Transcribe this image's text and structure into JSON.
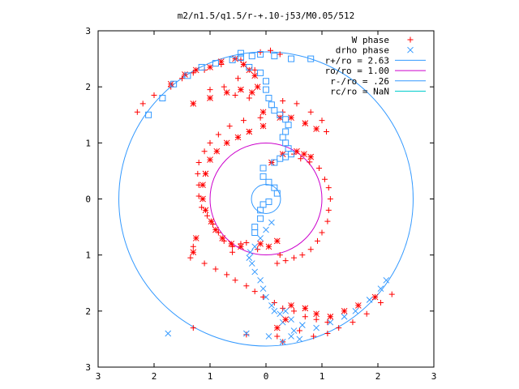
{
  "chart_data": {
    "type": "scatter",
    "title": "m2/n1.5/q1.5/r-+.10-j53/M0.05/512",
    "xlabel": "",
    "ylabel": "",
    "xlim": [
      -3,
      3
    ],
    "ylim": [
      -3,
      3
    ],
    "x_tick_values": [
      -3,
      -2,
      -1,
      0,
      1,
      2,
      3
    ],
    "x_tick_labels": [
      "3",
      "2",
      "1",
      "0",
      "1",
      "2",
      "3"
    ],
    "y_tick_values": [
      3,
      2,
      1,
      0,
      -1,
      -2,
      -3
    ],
    "y_tick_labels": [
      "3",
      "2",
      "1",
      "0",
      "1",
      "2",
      "3"
    ],
    "grid": false,
    "legend_position": "top-right",
    "colors": {
      "red": "#ff0000",
      "blue": "#3399ff",
      "magenta": "#cc00cc",
      "frame": "#000000"
    },
    "series": [
      {
        "name": "W phase",
        "marker": "plus",
        "color": "#ff0000",
        "points": [
          [
            -0.1,
            2.62
          ],
          [
            0.08,
            2.65
          ],
          [
            0.25,
            2.58
          ],
          [
            -0.45,
            2.48
          ],
          [
            -0.8,
            2.4
          ],
          [
            -1.1,
            2.3
          ],
          [
            -1.3,
            2.25
          ],
          [
            -1.5,
            2.15
          ],
          [
            -1.7,
            2.0
          ],
          [
            -2.0,
            1.85
          ],
          [
            -2.2,
            1.7
          ],
          [
            -2.3,
            1.55
          ],
          [
            -0.2,
            2.3
          ],
          [
            -0.5,
            2.15
          ],
          [
            -0.75,
            2.0
          ],
          [
            -1.0,
            1.95
          ],
          [
            -0.55,
            1.85
          ],
          [
            -0.3,
            1.8
          ],
          [
            0.3,
            1.75
          ],
          [
            0.55,
            1.7
          ],
          [
            0.8,
            1.55
          ],
          [
            1.0,
            1.4
          ],
          [
            1.08,
            1.2
          ],
          [
            0.3,
            1.55
          ],
          [
            -0.1,
            1.45
          ],
          [
            -0.4,
            1.4
          ],
          [
            -0.65,
            1.3
          ],
          [
            -0.85,
            1.15
          ],
          [
            -1.0,
            1.0
          ],
          [
            -1.1,
            0.85
          ],
          [
            -1.2,
            0.65
          ],
          [
            -1.22,
            0.45
          ],
          [
            -1.2,
            0.25
          ],
          [
            -1.2,
            0.05
          ],
          [
            -1.15,
            -0.15
          ],
          [
            -1.05,
            -0.3
          ],
          [
            -0.95,
            -0.45
          ],
          [
            -0.85,
            -0.6
          ],
          [
            -0.75,
            -0.75
          ],
          [
            -0.6,
            -0.85
          ],
          [
            -0.45,
            -0.8
          ],
          [
            -0.35,
            -0.78
          ],
          [
            0.5,
            0.8
          ],
          [
            0.62,
            0.72
          ],
          [
            0.78,
            0.66
          ],
          [
            0.95,
            0.55
          ],
          [
            1.05,
            0.35
          ],
          [
            1.12,
            0.2
          ],
          [
            1.15,
            0.0
          ],
          [
            1.12,
            -0.2
          ],
          [
            1.1,
            -0.4
          ],
          [
            1.0,
            -0.6
          ],
          [
            0.92,
            -0.75
          ],
          [
            0.8,
            -0.9
          ],
          [
            0.65,
            -1.0
          ],
          [
            0.5,
            -1.05
          ],
          [
            0.35,
            -1.1
          ],
          [
            0.2,
            -1.15
          ],
          [
            -1.3,
            -0.85
          ],
          [
            -1.35,
            -1.05
          ],
          [
            -1.1,
            -1.15
          ],
          [
            -0.9,
            -1.25
          ],
          [
            -0.7,
            -1.35
          ],
          [
            -0.55,
            -1.45
          ],
          [
            -0.35,
            -1.55
          ],
          [
            -0.2,
            -1.65
          ],
          [
            -0.05,
            -1.75
          ],
          [
            0.15,
            -1.85
          ],
          [
            0.3,
            -1.95
          ],
          [
            0.5,
            -2.0
          ],
          [
            0.7,
            -2.1
          ],
          [
            0.9,
            -2.15
          ],
          [
            1.1,
            -2.2
          ],
          [
            1.3,
            -2.3
          ],
          [
            1.55,
            -2.2
          ],
          [
            1.8,
            -2.05
          ],
          [
            2.05,
            -1.85
          ],
          [
            2.25,
            -1.7
          ],
          [
            -1.3,
            -2.3
          ],
          [
            -0.35,
            -2.42
          ],
          [
            0.2,
            -2.45
          ],
          [
            0.3,
            -2.55
          ],
          [
            0.6,
            -2.35
          ],
          [
            0.85,
            -2.45
          ],
          [
            1.1,
            -2.4
          ],
          [
            0.25,
            -1.0
          ],
          [
            -0.15,
            -0.9
          ],
          [
            -0.6,
            -0.95
          ]
        ]
      },
      {
        "name": "drho phase",
        "marker": "cross",
        "color": "#3399ff",
        "points": [
          [
            -1.75,
            -2.4
          ],
          [
            -0.35,
            -2.4
          ],
          [
            0.05,
            -2.45
          ],
          [
            0.3,
            -2.55
          ],
          [
            0.45,
            -2.45
          ],
          [
            0.6,
            -2.5
          ],
          [
            0.9,
            -2.3
          ],
          [
            1.15,
            -2.2
          ],
          [
            1.4,
            -2.1
          ],
          [
            1.6,
            -2.0
          ],
          [
            1.85,
            -1.8
          ],
          [
            2.05,
            -1.6
          ],
          [
            2.15,
            -1.45
          ],
          [
            0.3,
            -2.2
          ],
          [
            0.25,
            -2.05
          ],
          [
            0.1,
            -1.9
          ],
          [
            0.0,
            -1.75
          ],
          [
            -0.05,
            -1.6
          ],
          [
            -0.1,
            -1.45
          ],
          [
            -0.2,
            -1.3
          ],
          [
            -0.25,
            -1.15
          ],
          [
            -0.3,
            -1.05
          ],
          [
            -0.28,
            -0.95
          ],
          [
            -0.2,
            -0.85
          ],
          [
            -0.1,
            -0.7
          ],
          [
            0.0,
            -0.55
          ],
          [
            0.1,
            -0.42
          ],
          [
            0.5,
            -2.35
          ],
          [
            0.65,
            -2.25
          ],
          [
            0.45,
            -2.15
          ],
          [
            0.35,
            -2.0
          ],
          [
            0.15,
            -2.0
          ]
        ]
      },
      {
        "name": "",
        "marker": "star",
        "color": "#ff0000",
        "points": [
          [
            -1.7,
            2.05
          ],
          [
            -1.45,
            2.22
          ],
          [
            -1.25,
            2.3
          ],
          [
            -1.0,
            2.35
          ],
          [
            -0.8,
            2.45
          ],
          [
            -0.55,
            2.5
          ],
          [
            -0.4,
            2.4
          ],
          [
            -0.3,
            2.3
          ],
          [
            -0.2,
            2.2
          ],
          [
            -0.15,
            2.0
          ],
          [
            -0.25,
            1.9
          ],
          [
            -0.45,
            1.95
          ],
          [
            -0.7,
            1.9
          ],
          [
            -1.0,
            1.8
          ],
          [
            -1.3,
            1.7
          ],
          [
            -0.05,
            1.55
          ],
          [
            0.25,
            1.45
          ],
          [
            0.45,
            1.45
          ],
          [
            0.7,
            1.35
          ],
          [
            0.9,
            1.25
          ],
          [
            -0.05,
            1.3
          ],
          [
            -0.3,
            1.2
          ],
          [
            -0.5,
            1.1
          ],
          [
            -0.7,
            1.0
          ],
          [
            -0.88,
            0.85
          ],
          [
            -1.0,
            0.7
          ],
          [
            -1.08,
            0.45
          ],
          [
            -1.13,
            0.25
          ],
          [
            -1.13,
            0.0
          ],
          [
            -1.08,
            -0.2
          ],
          [
            -0.98,
            -0.4
          ],
          [
            -0.9,
            -0.55
          ],
          [
            -0.78,
            -0.7
          ],
          [
            -0.62,
            -0.8
          ],
          [
            -0.45,
            -0.85
          ],
          [
            0.55,
            0.85
          ],
          [
            0.68,
            0.8
          ],
          [
            0.8,
            0.75
          ],
          [
            0.3,
            0.8
          ],
          [
            0.1,
            0.65
          ],
          [
            0.2,
            -0.75
          ],
          [
            0.05,
            -0.85
          ],
          [
            -0.1,
            -0.8
          ],
          [
            -1.25,
            -0.7
          ],
          [
            -1.3,
            -0.95
          ],
          [
            0.45,
            -1.9
          ],
          [
            0.7,
            -1.95
          ],
          [
            0.9,
            -2.05
          ],
          [
            1.15,
            -2.1
          ],
          [
            1.4,
            -2.0
          ],
          [
            1.65,
            -1.9
          ],
          [
            1.95,
            -1.75
          ],
          [
            0.35,
            -2.15
          ],
          [
            0.2,
            -2.3
          ]
        ]
      },
      {
        "name": "",
        "marker": "square",
        "color": "#3399ff",
        "points": [
          [
            -2.1,
            1.5
          ],
          [
            -1.85,
            1.8
          ],
          [
            -1.65,
            2.05
          ],
          [
            -1.4,
            2.2
          ],
          [
            -1.15,
            2.35
          ],
          [
            -0.9,
            2.42
          ],
          [
            -0.6,
            2.48
          ],
          [
            -0.45,
            2.52
          ],
          [
            -0.25,
            2.55
          ],
          [
            -0.45,
            2.6
          ],
          [
            -0.1,
            2.58
          ],
          [
            0.15,
            2.55
          ],
          [
            0.45,
            2.5
          ],
          [
            -0.3,
            2.35
          ],
          [
            -0.1,
            2.25
          ],
          [
            0.0,
            2.1
          ],
          [
            0.0,
            1.95
          ],
          [
            0.05,
            1.8
          ],
          [
            0.1,
            1.68
          ],
          [
            0.15,
            1.58
          ],
          [
            0.25,
            1.5
          ],
          [
            0.35,
            1.42
          ],
          [
            0.4,
            1.32
          ],
          [
            0.35,
            1.2
          ],
          [
            0.3,
            1.1
          ],
          [
            0.35,
            1.0
          ],
          [
            0.4,
            0.9
          ],
          [
            0.45,
            0.8
          ],
          [
            0.35,
            0.75
          ],
          [
            0.25,
            0.72
          ],
          [
            0.15,
            0.65
          ],
          [
            -0.05,
            0.55
          ],
          [
            -0.05,
            0.4
          ],
          [
            0.05,
            0.3
          ],
          [
            0.15,
            0.2
          ],
          [
            0.2,
            0.1
          ],
          [
            0.05,
            -0.05
          ],
          [
            -0.05,
            -0.1
          ],
          [
            -0.1,
            -0.2
          ],
          [
            -0.1,
            -0.35
          ],
          [
            -0.2,
            -0.5
          ],
          [
            0.8,
            2.5
          ],
          [
            -0.2,
            -0.6
          ]
        ]
      }
    ],
    "curves": [
      {
        "name": "r+/ro = 2.63",
        "radius": 2.63,
        "color": "#3399ff"
      },
      {
        "name": "ro/ro = 1.00",
        "radius": 1.0,
        "color": "#cc00cc"
      },
      {
        "name": "r-/ro = .26",
        "radius": 0.26,
        "color": "#3399ff"
      },
      {
        "name": "rc/ro = NaN",
        "radius": null,
        "color": "#00cccc"
      }
    ]
  }
}
